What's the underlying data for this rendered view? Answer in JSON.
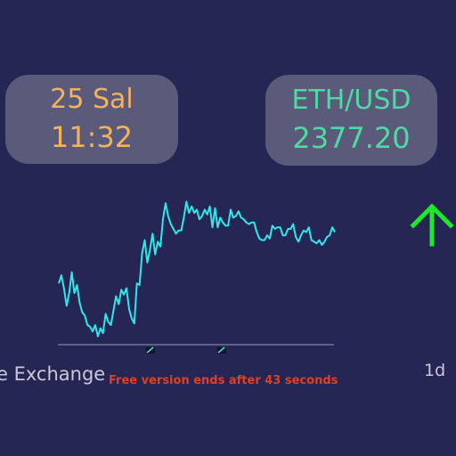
{
  "date_card": {
    "date": "25 Sal",
    "time": "11:32"
  },
  "ticker": {
    "pair": "ETH/USD",
    "price": "2377.20"
  },
  "trend_icon": "up-arrow-icon",
  "exchange_label": "e Exchange",
  "timeframe": "1d",
  "banner": "Free version ends after 43 seconds",
  "colors": {
    "background": "#262655",
    "card": "#5a5a7a",
    "date_text": "#f4b15e",
    "pair_text": "#4fd9a3",
    "line": "#2ee8ea",
    "arrow": "#1ee82a",
    "banner": "#d9412a"
  },
  "chart_data": {
    "type": "line",
    "title": "",
    "xlabel": "",
    "ylabel": "",
    "ylim": [
      0,
      100
    ],
    "series": [
      {
        "values": [
          36,
          41,
          33,
          22,
          30,
          43,
          30,
          35,
          24,
          18,
          16,
          10,
          9,
          6,
          10,
          3,
          8,
          5,
          17,
          12,
          10,
          19,
          28,
          23,
          32,
          29,
          33,
          20,
          14,
          11,
          36,
          35,
          55,
          63,
          49,
          57,
          67,
          54,
          62,
          59,
          76,
          86,
          78,
          73,
          70,
          67,
          69,
          69,
          77,
          87,
          80,
          84,
          80,
          82,
          76,
          78,
          82,
          79,
          84,
          71,
          83,
          71,
          77,
          74,
          72,
          72,
          82,
          77,
          78,
          81,
          77,
          76,
          74,
          73,
          74,
          74,
          68,
          64,
          63,
          63,
          66,
          64,
          72,
          70,
          71,
          71,
          66,
          66,
          70,
          70,
          73,
          65,
          62,
          66,
          69,
          68,
          71,
          63,
          62,
          61,
          63,
          60,
          62,
          65,
          66,
          71,
          68
        ]
      }
    ]
  }
}
